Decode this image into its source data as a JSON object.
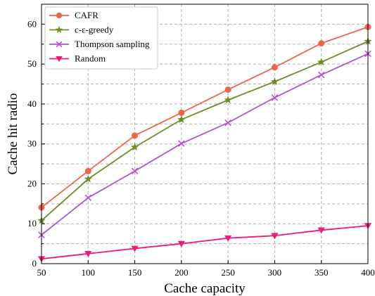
{
  "chart_data": {
    "type": "line",
    "xlabel": "Cache capacity",
    "ylabel": "Cache hit radio",
    "x": [
      50,
      100,
      150,
      200,
      250,
      300,
      350,
      400
    ],
    "xlim": [
      50,
      400
    ],
    "ylim": [
      0,
      65
    ],
    "xticks": [
      "50",
      "100",
      "150",
      "200",
      "250",
      "300",
      "350",
      "400"
    ],
    "yticks": [
      "0",
      "10",
      "20",
      "30",
      "40",
      "50",
      "60"
    ],
    "grid": true,
    "legend_position": "top-left",
    "series": [
      {
        "name": "CAFR",
        "color": "#ef6548",
        "marker": "circle",
        "values": [
          14.1,
          23.2,
          32.1,
          37.8,
          43.6,
          49.2,
          55.2,
          59.3
        ]
      },
      {
        "name": "c-ε-greedy",
        "color": "#6b8e23",
        "marker": "star",
        "values": [
          10.8,
          21.2,
          29.2,
          36.1,
          41.0,
          45.6,
          50.5,
          55.7
        ]
      },
      {
        "name": "Thompson sampling",
        "color": "#b452d6",
        "marker": "x",
        "values": [
          7.2,
          16.5,
          23.2,
          30.1,
          35.3,
          41.6,
          47.3,
          52.6
        ]
      },
      {
        "name": "Random",
        "color": "#f0187a",
        "marker": "triangle-down",
        "values": [
          1.2,
          2.5,
          3.8,
          5.0,
          6.4,
          7.0,
          8.4,
          9.5
        ]
      }
    ]
  }
}
